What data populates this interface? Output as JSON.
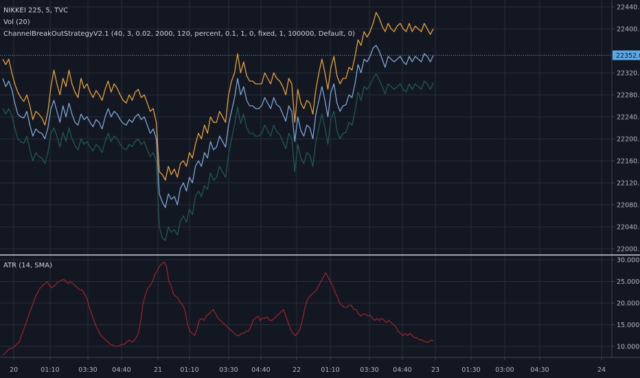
{
  "legend": {
    "symbol": "NIKKEI 225, 5, TVC",
    "vol": "Vol (20)",
    "strategy": "ChannelBreakOutStrategyV2.1 (40, 3, 0.02, 2000, 120, percent, 0.1, 1, 0, fixed, 1, 100000, Default, 0)",
    "atr": "ATR (14, SMA)"
  },
  "last_price_label": "22352.0",
  "colors": {
    "background": "#131722",
    "grid": "#2a2e39",
    "upper": "#e6a23c",
    "middle": "#7ea6d6",
    "lower": "#1f5a52",
    "atr": "#b0242c",
    "price_line": "#5aa9e6",
    "price_badge": "#5aa9e6",
    "separator": "#cfd3dc"
  },
  "chart_data": [
    {
      "type": "line",
      "title": "",
      "x_tick_labels": [
        "20",
        "01:10",
        "03:30",
        "04:40",
        "21",
        "01:10",
        "03:30",
        "04:40",
        "22",
        "01:10",
        "03:30",
        "04:40",
        "23",
        "01:30",
        "03:00",
        "04:30",
        "24"
      ],
      "y_tick_labels": [
        "22000.0",
        "22040.0",
        "22080.0",
        "22120.0",
        "22160.0",
        "22200.0",
        "22240.0",
        "22280.0",
        "22320.0",
        "22400.0",
        "22440.0"
      ],
      "ylim": [
        21990,
        22450
      ],
      "last_value": 22352,
      "series": [
        {
          "key": "upper",
          "values": [
            22345,
            22335,
            22345,
            22320,
            22300,
            22285,
            22275,
            22268,
            22280,
            22260,
            22235,
            22250,
            22245,
            22238,
            22225,
            22250,
            22295,
            22325,
            22300,
            22280,
            22310,
            22295,
            22325,
            22300,
            22285,
            22275,
            22310,
            22292,
            22300,
            22285,
            22275,
            22288,
            22280,
            22270,
            22290,
            22305,
            22285,
            22300,
            22292,
            22280,
            22270,
            22265,
            22280,
            22270,
            22285,
            22290,
            22275,
            22280,
            22265,
            22250,
            22255,
            22230,
            22140,
            22135,
            22125,
            22150,
            22135,
            22145,
            22130,
            22155,
            22160,
            22150,
            22175,
            22165,
            22190,
            22210,
            22200,
            22225,
            22210,
            22240,
            22230,
            22230,
            22250,
            22240,
            22230,
            22280,
            22305,
            22320,
            22355,
            22320,
            22340,
            22315,
            22305,
            22305,
            22300,
            22300,
            22300,
            22320,
            22310,
            22300,
            22320,
            22310,
            22305,
            22295,
            22280,
            22310,
            22300,
            22230,
            22290,
            22265,
            22255,
            22270,
            22265,
            22245,
            22290,
            22320,
            22345,
            22320,
            22290,
            22330,
            22350,
            22315,
            22300,
            22310,
            22310,
            22330,
            22325,
            22350,
            22380,
            22370,
            22395,
            22385,
            22395,
            22410,
            22430,
            22420,
            22405,
            22395,
            22410,
            22400,
            22395,
            22405,
            22410,
            22400,
            22395,
            22410,
            22395,
            22405,
            22400,
            22395,
            22410,
            22400,
            22390,
            22400
          ]
        },
        {
          "key": "middle",
          "values": [
            22310,
            22295,
            22305,
            22290,
            22265,
            22245,
            22240,
            22238,
            22250,
            22225,
            22205,
            22218,
            22212,
            22210,
            22200,
            22220,
            22255,
            22270,
            22250,
            22230,
            22260,
            22240,
            22265,
            22245,
            22230,
            22225,
            22245,
            22235,
            22240,
            22230,
            22222,
            22235,
            22230,
            22218,
            22240,
            22255,
            22240,
            22250,
            22245,
            22235,
            22228,
            22225,
            22235,
            22230,
            22240,
            22245,
            22235,
            22240,
            22225,
            22210,
            22218,
            22200,
            22100,
            22085,
            22075,
            22100,
            22090,
            22095,
            22080,
            22110,
            22120,
            22105,
            22130,
            22120,
            22150,
            22160,
            22150,
            22175,
            22165,
            22195,
            22180,
            22185,
            22205,
            22195,
            22185,
            22225,
            22250,
            22275,
            22310,
            22280,
            22295,
            22270,
            22260,
            22260,
            22255,
            22255,
            22260,
            22275,
            22265,
            22255,
            22275,
            22262,
            22258,
            22245,
            22232,
            22260,
            22250,
            22195,
            22240,
            22215,
            22205,
            22225,
            22220,
            22200,
            22245,
            22270,
            22295,
            22270,
            22240,
            22285,
            22300,
            22265,
            22250,
            22260,
            22262,
            22280,
            22275,
            22300,
            22335,
            22320,
            22345,
            22340,
            22350,
            22365,
            22370,
            22360,
            22345,
            22330,
            22350,
            22345,
            22340,
            22345,
            22350,
            22340,
            22335,
            22350,
            22340,
            22350,
            22345,
            22340,
            22355,
            22350,
            22340,
            22352
          ]
        },
        {
          "key": "lower",
          "values": [
            22255,
            22245,
            22255,
            22242,
            22220,
            22200,
            22195,
            22192,
            22205,
            22180,
            22160,
            22175,
            22168,
            22165,
            22155,
            22175,
            22210,
            22220,
            22205,
            22185,
            22212,
            22195,
            22220,
            22200,
            22188,
            22180,
            22200,
            22190,
            22195,
            22185,
            22178,
            22190,
            22185,
            22175,
            22195,
            22210,
            22195,
            22205,
            22200,
            22190,
            22183,
            22180,
            22190,
            22186,
            22195,
            22200,
            22190,
            22195,
            22180,
            22168,
            22175,
            22160,
            22040,
            22020,
            22015,
            22040,
            22030,
            22035,
            22025,
            22050,
            22060,
            22048,
            22072,
            22062,
            22095,
            22105,
            22095,
            22115,
            22108,
            22138,
            22125,
            22130,
            22150,
            22140,
            22130,
            22170,
            22200,
            22225,
            22258,
            22228,
            22245,
            22220,
            22210,
            22210,
            22205,
            22205,
            22210,
            22225,
            22215,
            22205,
            22225,
            22213,
            22208,
            22195,
            22182,
            22210,
            22200,
            22140,
            22190,
            22165,
            22155,
            22175,
            22170,
            22150,
            22195,
            22220,
            22245,
            22220,
            22190,
            22235,
            22250,
            22215,
            22200,
            22210,
            22212,
            22230,
            22225,
            22250,
            22285,
            22270,
            22295,
            22290,
            22298,
            22310,
            22318,
            22308,
            22295,
            22282,
            22300,
            22295,
            22290,
            22295,
            22300,
            22290,
            22285,
            22300,
            22290,
            22300,
            22295,
            22290,
            22305,
            22300,
            22290,
            22302
          ]
        }
      ]
    },
    {
      "type": "line",
      "title": "ATR (14, SMA)",
      "y_tick_labels": [
        "10.0000",
        "15.0000",
        "20.0000",
        "25.0000",
        "30.0000"
      ],
      "ylim": [
        8,
        31
      ],
      "series": [
        {
          "key": "atr",
          "values": [
            8.0,
            8.5,
            9.0,
            9.5,
            9.5,
            10.0,
            10.5,
            11.0,
            12.5,
            14.0,
            15.5,
            17.0,
            18.5,
            20.0,
            21.5,
            22.5,
            23.5,
            24.0,
            24.5,
            25.0,
            24.0,
            23.5,
            24.0,
            24.5,
            25.0,
            25.2,
            25.5,
            25.0,
            24.5,
            25.0,
            24.5,
            24.0,
            23.5,
            23.0,
            23.0,
            22.0,
            21.0,
            19.0,
            17.5,
            16.0,
            14.5,
            13.5,
            12.5,
            12.0,
            11.5,
            11.0,
            10.5,
            10.3,
            10.0,
            10.0,
            10.2,
            10.5,
            10.5,
            11.0,
            11.5,
            11.0,
            11.2,
            12.0,
            13.0,
            16.0,
            20.0,
            22.0,
            23.5,
            24.0,
            25.0,
            26.5,
            27.5,
            28.5,
            29.0,
            29.5,
            28.5,
            25.0,
            24.0,
            22.0,
            21.5,
            21.0,
            20.0,
            19.5,
            18.0,
            15.0,
            13.5,
            13.0,
            12.5,
            14.0,
            16.0,
            16.5,
            16.0,
            17.0,
            17.5,
            18.0,
            18.5,
            17.5,
            16.5,
            16.0,
            15.5,
            15.0,
            14.5,
            14.0,
            13.5,
            13.0,
            12.5,
            12.5,
            13.0,
            13.0,
            13.5,
            13.5,
            14.5,
            16.0,
            16.5,
            17.0,
            16.0,
            16.5,
            16.5,
            16.8,
            16.0,
            16.0,
            16.5,
            17.0,
            17.5,
            18.0,
            18.5,
            17.0,
            15.5,
            14.0,
            13.0,
            12.5,
            13.0,
            14.0,
            16.0,
            18.5,
            20.5,
            21.5,
            22.0,
            22.5,
            23.0,
            24.0,
            25.0,
            26.0,
            27.0,
            26.0,
            25.0,
            24.0,
            22.5,
            21.5,
            20.0,
            19.5,
            19.0,
            19.0,
            19.5,
            19.5,
            18.5,
            18.5,
            17.5,
            17.0,
            17.5,
            17.5,
            17.0,
            17.2,
            16.5,
            16.0,
            16.5,
            16.0,
            16.5,
            16.0,
            15.5,
            16.0,
            15.5,
            15.0,
            14.5,
            13.5,
            13.0,
            12.5,
            13.0,
            12.5,
            13.0,
            12.5,
            12.0,
            12.0,
            11.5,
            11.5,
            11.2,
            11.0,
            11.0,
            11.5,
            11.3
          ]
        }
      ]
    }
  ]
}
